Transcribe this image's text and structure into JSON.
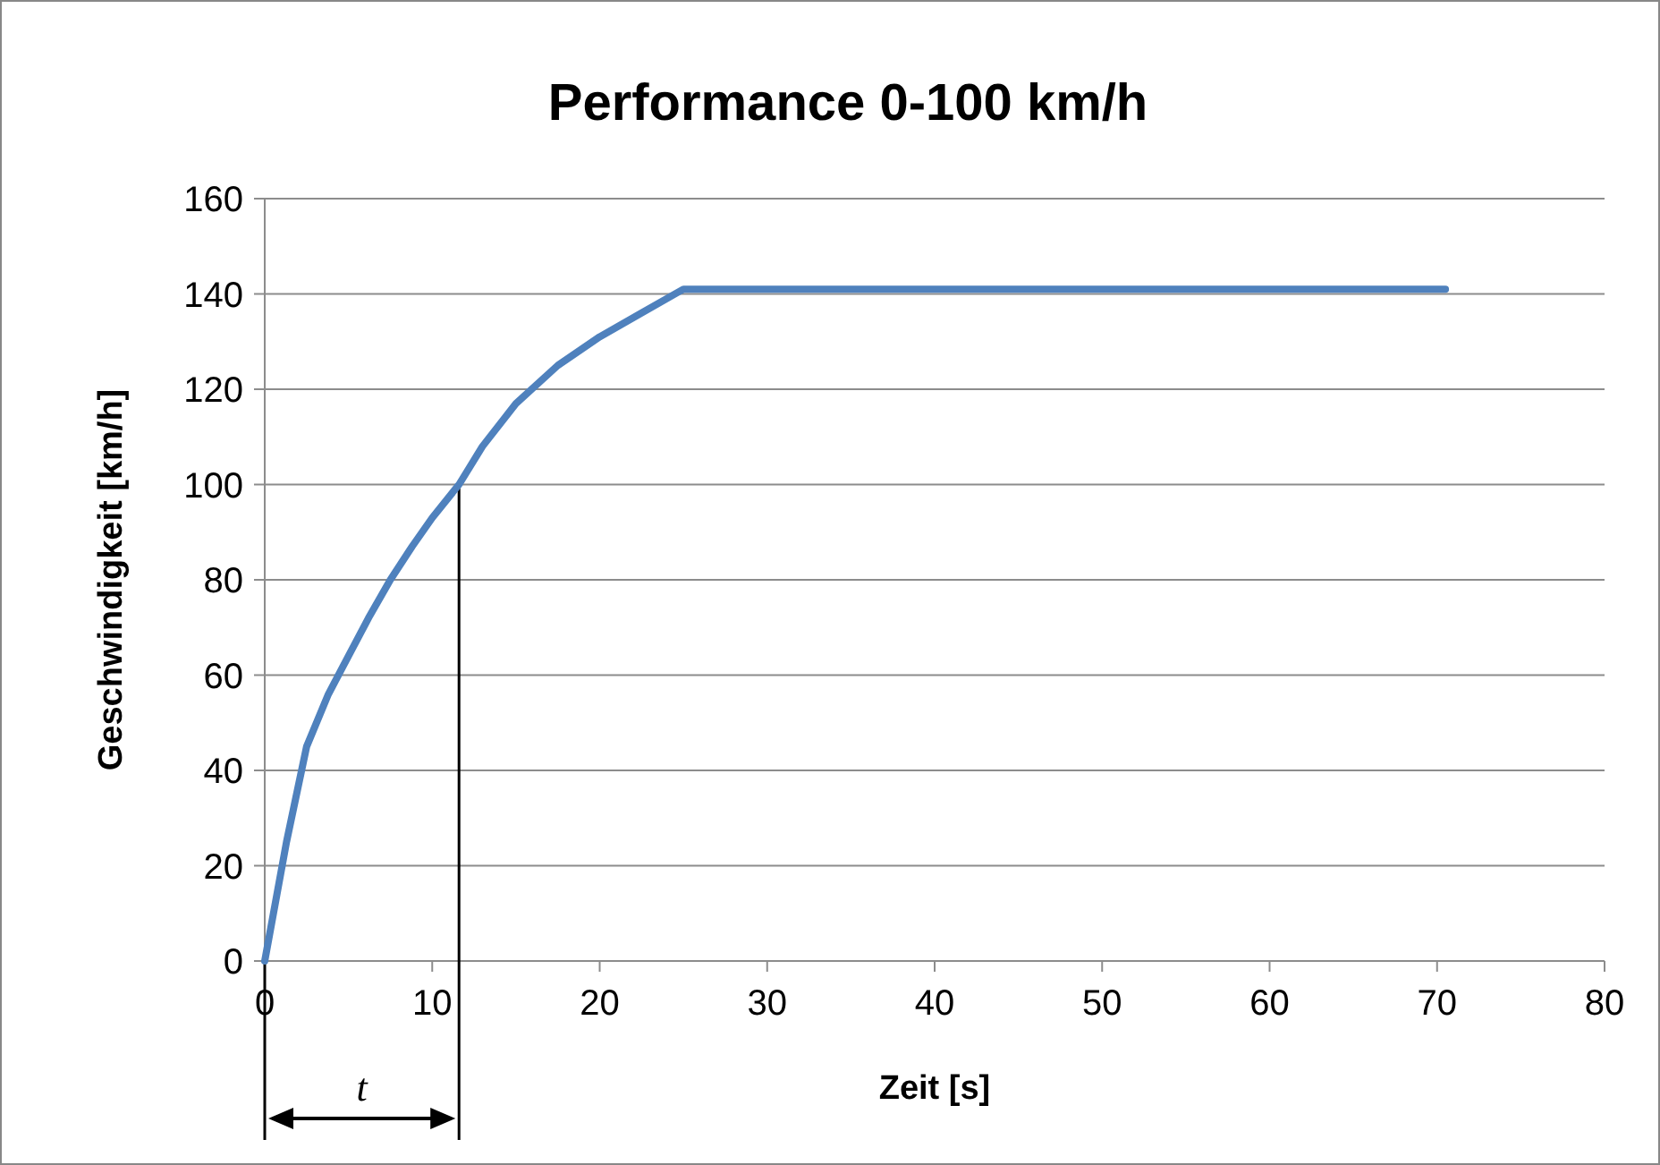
{
  "chart_data": {
    "type": "line",
    "title": "Performance 0-100 km/h",
    "xlabel": "Zeit [s]",
    "ylabel": "Geschwindigkeit [km/h]",
    "x": [
      0,
      1.3,
      2.5,
      3.8,
      5,
      6.2,
      7.5,
      8.8,
      10,
      11.6,
      13,
      15,
      17.5,
      20,
      22.5,
      25,
      70.5
    ],
    "series": [
      {
        "color": "#4f81bd",
        "values": [
          0,
          25,
          45,
          56,
          64,
          72,
          80,
          87,
          93,
          100,
          108,
          117,
          125,
          131,
          136,
          141,
          141
        ]
      }
    ],
    "xlim": [
      0,
      80
    ],
    "xticks": [
      0,
      10,
      20,
      30,
      40,
      50,
      60,
      70,
      80
    ],
    "ylim": [
      0,
      160
    ],
    "yticks": [
      0,
      20,
      40,
      60,
      80,
      100,
      120,
      140,
      160
    ],
    "grid": "y",
    "line_style": "solid",
    "marker": "none",
    "ref_lines": [
      {
        "axis": "x",
        "value": 11.6,
        "label": "t",
        "color": "#000000"
      }
    ]
  }
}
